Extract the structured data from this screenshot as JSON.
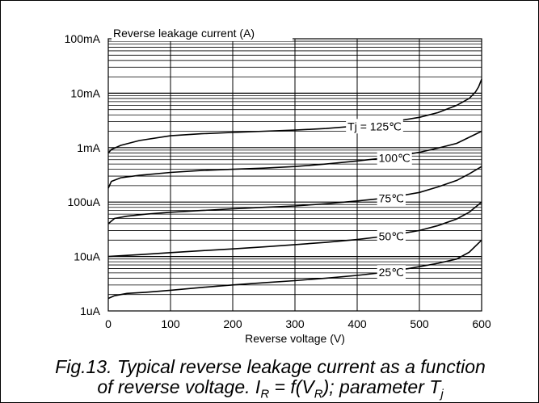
{
  "chart_data": {
    "type": "line",
    "title": "",
    "ylabel": "Reverse leakage current (A)",
    "xlabel": "Reverse voltage (V)",
    "xlim": [
      0,
      600
    ],
    "ylim": [
      1e-06,
      0.1
    ],
    "y_scale": "log",
    "grid": true,
    "x_ticks": [
      "0",
      "100",
      "200",
      "300",
      "400",
      "500",
      "600"
    ],
    "y_ticks": [
      "1uA",
      "10uA",
      "100uA",
      "1mA",
      "10mA",
      "100mA"
    ],
    "series": [
      {
        "name": "Tj = 125℃",
        "x": [
          0,
          5,
          20,
          50,
          100,
          150,
          200,
          250,
          300,
          350,
          400,
          450,
          500,
          530,
          560,
          580,
          590,
          595,
          600
        ],
        "y": [
          0.0008,
          0.00092,
          0.0011,
          0.00135,
          0.00165,
          0.0018,
          0.0019,
          0.002,
          0.0021,
          0.00225,
          0.0025,
          0.0029,
          0.0036,
          0.0044,
          0.006,
          0.008,
          0.0105,
          0.013,
          0.018
        ]
      },
      {
        "name": "100℃",
        "x": [
          0,
          5,
          20,
          50,
          100,
          150,
          200,
          250,
          300,
          350,
          400,
          450,
          500,
          530,
          560,
          580,
          600
        ],
        "y": [
          0.00018,
          0.00024,
          0.00028,
          0.00031,
          0.00035,
          0.00038,
          0.0004,
          0.00042,
          0.00045,
          0.0005,
          0.00057,
          0.00066,
          0.00082,
          0.00098,
          0.0012,
          0.00155,
          0.002
        ]
      },
      {
        "name": "75℃",
        "x": [
          0,
          10,
          30,
          60,
          100,
          150,
          200,
          250,
          300,
          350,
          400,
          450,
          500,
          530,
          560,
          580,
          600
        ],
        "y": [
          4e-05,
          5e-05,
          5.5e-05,
          6e-05,
          6.5e-05,
          7e-05,
          7.5e-05,
          8e-05,
          8.5e-05,
          9.3e-05,
          0.000105,
          0.00012,
          0.00015,
          0.00019,
          0.00025,
          0.00033,
          0.00045
        ]
      },
      {
        "name": "50℃",
        "x": [
          0,
          50,
          100,
          150,
          200,
          250,
          300,
          350,
          400,
          450,
          500,
          530,
          560,
          580,
          600
        ],
        "y": [
          1e-05,
          1.08e-05,
          1.18e-05,
          1.28e-05,
          1.38e-05,
          1.5e-05,
          1.65e-05,
          1.82e-05,
          2.05e-05,
          2.4e-05,
          3e-05,
          3.7e-05,
          4.9e-05,
          6.5e-05,
          0.0001
        ]
      },
      {
        "name": "25℃",
        "x": [
          0,
          10,
          30,
          60,
          100,
          150,
          200,
          250,
          300,
          350,
          400,
          450,
          500,
          530,
          560,
          580,
          600
        ],
        "y": [
          1.7e-06,
          1.9e-06,
          2.1e-06,
          2.2e-06,
          2.4e-06,
          2.7e-06,
          3e-06,
          3.3e-06,
          3.6e-06,
          4e-06,
          4.5e-06,
          5.2e-06,
          6.5e-06,
          7.5e-06,
          9e-06,
          1.2e-05,
          2e-05
        ]
      }
    ]
  },
  "caption": {
    "line1": "Fig.13.  Typical reverse leakage current as a function",
    "line2_a": "of reverse voltage. I",
    "line2_sub1": "R",
    "line2_b": " = f(V",
    "line2_sub2": "R",
    "line2_c": "); parameter T",
    "line2_sub3": "j"
  }
}
